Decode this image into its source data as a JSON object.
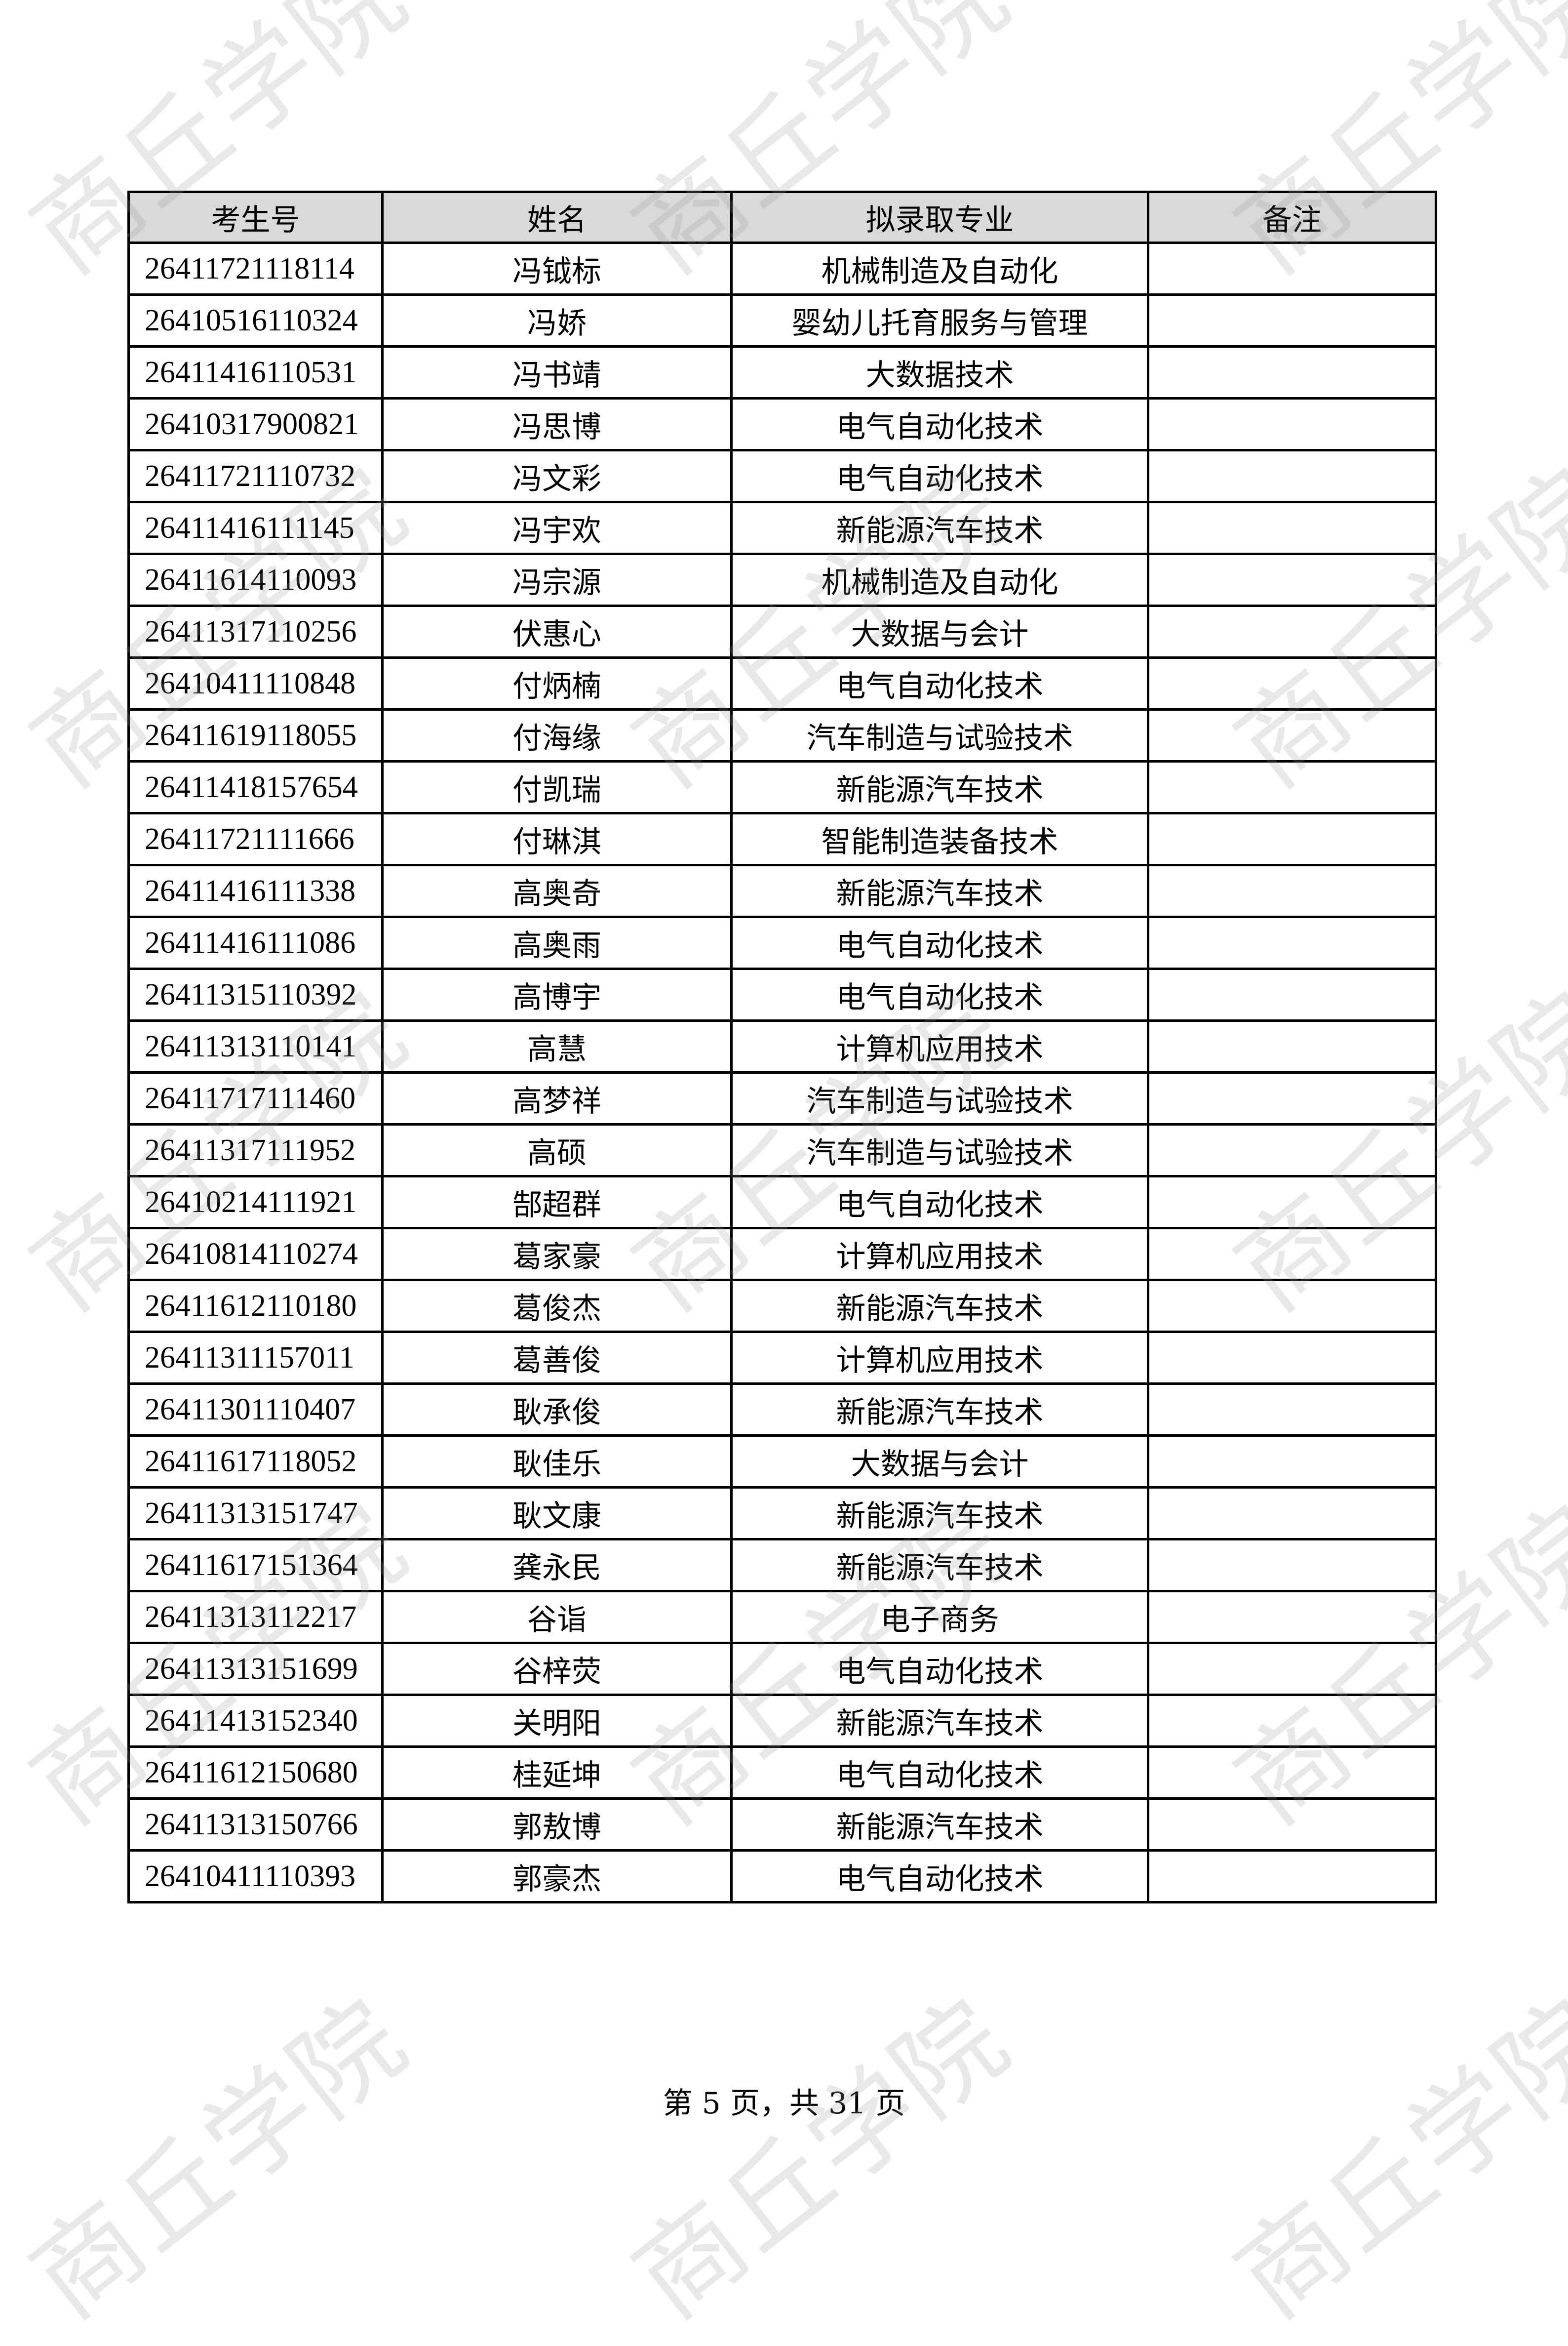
{
  "watermark": "商丘学院",
  "table": {
    "headers": [
      "考生号",
      "姓名",
      "拟录取专业",
      "备注"
    ],
    "rows": [
      [
        "26411721118114",
        "冯钺标",
        "机械制造及自动化",
        ""
      ],
      [
        "26410516110324",
        "冯娇",
        "婴幼儿托育服务与管理",
        ""
      ],
      [
        "26411416110531",
        "冯书靖",
        "大数据技术",
        ""
      ],
      [
        "26410317900821",
        "冯思博",
        "电气自动化技术",
        ""
      ],
      [
        "26411721110732",
        "冯文彩",
        "电气自动化技术",
        ""
      ],
      [
        "26411416111145",
        "冯宇欢",
        "新能源汽车技术",
        ""
      ],
      [
        "26411614110093",
        "冯宗源",
        "机械制造及自动化",
        ""
      ],
      [
        "26411317110256",
        "伏惠心",
        "大数据与会计",
        ""
      ],
      [
        "26410411110848",
        "付炳楠",
        "电气自动化技术",
        ""
      ],
      [
        "26411619118055",
        "付海缘",
        "汽车制造与试验技术",
        ""
      ],
      [
        "26411418157654",
        "付凯瑞",
        "新能源汽车技术",
        ""
      ],
      [
        "26411721111666",
        "付琳淇",
        "智能制造装备技术",
        ""
      ],
      [
        "26411416111338",
        "高奥奇",
        "新能源汽车技术",
        ""
      ],
      [
        "26411416111086",
        "高奥雨",
        "电气自动化技术",
        ""
      ],
      [
        "26411315110392",
        "高博宇",
        "电气自动化技术",
        ""
      ],
      [
        "26411313110141",
        "高慧",
        "计算机应用技术",
        ""
      ],
      [
        "26411717111460",
        "高梦祥",
        "汽车制造与试验技术",
        ""
      ],
      [
        "26411317111952",
        "高硕",
        "汽车制造与试验技术",
        ""
      ],
      [
        "26410214111921",
        "郜超群",
        "电气自动化技术",
        ""
      ],
      [
        "26410814110274",
        "葛家豪",
        "计算机应用技术",
        ""
      ],
      [
        "26411612110180",
        "葛俊杰",
        "新能源汽车技术",
        ""
      ],
      [
        "26411311157011",
        "葛善俊",
        "计算机应用技术",
        ""
      ],
      [
        "26411301110407",
        "耿承俊",
        "新能源汽车技术",
        ""
      ],
      [
        "26411617118052",
        "耿佳乐",
        "大数据与会计",
        ""
      ],
      [
        "26411313151747",
        "耿文康",
        "新能源汽车技术",
        ""
      ],
      [
        "26411617151364",
        "龚永民",
        "新能源汽车技术",
        ""
      ],
      [
        "26411313112217",
        "谷诣",
        "电子商务",
        ""
      ],
      [
        "26411313151699",
        "谷梓荧",
        "电气自动化技术",
        ""
      ],
      [
        "26411413152340",
        "关明阳",
        "新能源汽车技术",
        ""
      ],
      [
        "26411612150680",
        "桂延坤",
        "电气自动化技术",
        ""
      ],
      [
        "26411313150766",
        "郭敖博",
        "新能源汽车技术",
        ""
      ],
      [
        "26410411110393",
        "郭豪杰",
        "电气自动化技术",
        ""
      ]
    ]
  },
  "footer": {
    "page_label": "第 5 页，共 31 页"
  }
}
